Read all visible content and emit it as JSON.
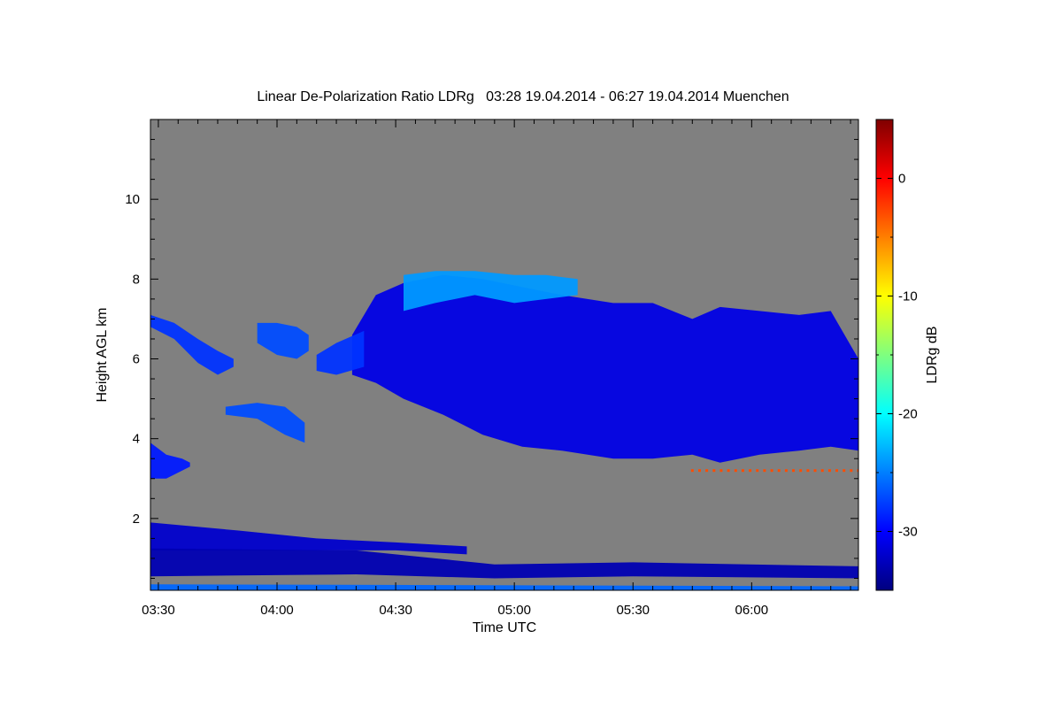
{
  "chart_data": {
    "type": "heatmap",
    "title": "Linear De-Polarization Ratio LDRg   03:28 19.04.2014 - 06:27 19.04.2014 Muenchen",
    "xlabel": "Time UTC",
    "ylabel": "Height AGL km",
    "colorbar_label": "LDRg dB",
    "x_range_minutes_utc": [
      208,
      387
    ],
    "y_range_km": [
      0.2,
      12.0
    ],
    "x_ticks": [
      {
        "minute": 210,
        "label": "03:30"
      },
      {
        "minute": 240,
        "label": "04:00"
      },
      {
        "minute": 270,
        "label": "04:30"
      },
      {
        "minute": 300,
        "label": "05:00"
      },
      {
        "minute": 330,
        "label": "05:30"
      },
      {
        "minute": 360,
        "label": "06:00"
      }
    ],
    "y_ticks": [
      {
        "value": 2,
        "label": "2"
      },
      {
        "value": 4,
        "label": "4"
      },
      {
        "value": 6,
        "label": "6"
      },
      {
        "value": 8,
        "label": "8"
      },
      {
        "value": 10,
        "label": "10"
      }
    ],
    "colorbar_range_db": [
      -35,
      5
    ],
    "colorbar_ticks": [
      {
        "value": 0,
        "label": "0"
      },
      {
        "value": -10,
        "label": "-10"
      },
      {
        "value": -20,
        "label": "-20"
      },
      {
        "value": -30,
        "label": "-30"
      }
    ],
    "no_data_color": "#808080",
    "colormap": [
      "#00007f",
      "#0000ff",
      "#007fff",
      "#00ffff",
      "#7fff7f",
      "#ffff00",
      "#ff7f00",
      "#ff0000",
      "#7f0000"
    ],
    "cloud_regions": [
      {
        "name": "main-cirrus-deck",
        "ldr_db": -31,
        "t_start": 259,
        "t_end": 387,
        "profile": [
          [
            259,
            5.6,
            6.6
          ],
          [
            265,
            5.4,
            7.6
          ],
          [
            272,
            5.0,
            7.9
          ],
          [
            282,
            4.6,
            8.1
          ],
          [
            292,
            4.1,
            8.0
          ],
          [
            302,
            3.8,
            7.8
          ],
          [
            312,
            3.7,
            7.6
          ],
          [
            325,
            3.5,
            7.4
          ],
          [
            335,
            3.5,
            7.4
          ],
          [
            345,
            3.6,
            7.0
          ],
          [
            352,
            3.4,
            7.3
          ],
          [
            362,
            3.6,
            7.2
          ],
          [
            372,
            3.7,
            7.1
          ],
          [
            380,
            3.8,
            7.2
          ],
          [
            387,
            3.7,
            6.0
          ]
        ]
      },
      {
        "name": "cirrus-upper-fringe",
        "ldr_db": -24,
        "t_start": 272,
        "t_end": 316,
        "profile": [
          [
            272,
            7.2,
            8.1
          ],
          [
            280,
            7.4,
            8.2
          ],
          [
            290,
            7.6,
            8.2
          ],
          [
            300,
            7.4,
            8.1
          ],
          [
            308,
            7.5,
            8.1
          ],
          [
            316,
            7.6,
            8.0
          ]
        ]
      },
      {
        "name": "mid-level-cloud-a",
        "ldr_db": -28,
        "t_start": 208,
        "t_end": 229,
        "profile": [
          [
            208,
            6.8,
            7.1
          ],
          [
            214,
            6.5,
            6.9
          ],
          [
            220,
            5.9,
            6.5
          ],
          [
            225,
            5.6,
            6.2
          ],
          [
            229,
            5.8,
            6.0
          ]
        ]
      },
      {
        "name": "mid-level-cloud-b",
        "ldr_db": -27,
        "t_start": 235,
        "t_end": 248,
        "profile": [
          [
            235,
            6.4,
            6.9
          ],
          [
            240,
            6.1,
            6.9
          ],
          [
            245,
            6.0,
            6.8
          ],
          [
            248,
            6.2,
            6.6
          ]
        ]
      },
      {
        "name": "mid-level-cloud-c",
        "ldr_db": -28,
        "t_start": 250,
        "t_end": 262,
        "profile": [
          [
            250,
            5.7,
            6.1
          ],
          [
            255,
            5.6,
            6.4
          ],
          [
            262,
            5.8,
            6.7
          ]
        ]
      },
      {
        "name": "small-cloud-4-5km",
        "ldr_db": -27,
        "t_start": 227,
        "t_end": 247,
        "profile": [
          [
            227,
            4.6,
            4.8
          ],
          [
            235,
            4.5,
            4.9
          ],
          [
            242,
            4.1,
            4.8
          ],
          [
            247,
            3.9,
            4.4
          ]
        ]
      },
      {
        "name": "low-cloud-3km",
        "ldr_db": -29,
        "t_start": 208,
        "t_end": 218,
        "profile": [
          [
            208,
            3.0,
            3.9
          ],
          [
            212,
            3.0,
            3.6
          ],
          [
            216,
            3.2,
            3.5
          ],
          [
            218,
            3.3,
            3.4
          ]
        ]
      },
      {
        "name": "aerosol-layer-1-2km",
        "ldr_db": -32,
        "t_start": 208,
        "t_end": 288,
        "profile": [
          [
            208,
            1.2,
            1.9
          ],
          [
            230,
            1.2,
            1.7
          ],
          [
            250,
            1.2,
            1.5
          ],
          [
            270,
            1.2,
            1.4
          ],
          [
            288,
            1.1,
            1.3
          ]
        ]
      },
      {
        "name": "boundary-layer-band",
        "ldr_db": -33,
        "t_start": 208,
        "t_end": 387,
        "profile": [
          [
            208,
            0.55,
            1.25
          ],
          [
            260,
            0.6,
            1.2
          ],
          [
            295,
            0.5,
            0.85
          ],
          [
            330,
            0.55,
            0.9
          ],
          [
            387,
            0.5,
            0.8
          ]
        ]
      },
      {
        "name": "surface-band",
        "ldr_db": -26,
        "t_start": 208,
        "t_end": 387,
        "profile": [
          [
            208,
            0.2,
            0.35
          ],
          [
            387,
            0.2,
            0.3
          ]
        ]
      }
    ],
    "spot_features": [
      {
        "name": "red-speckle-row",
        "ldr_db": -3,
        "t_start": 345,
        "t_end": 387,
        "height_km": 3.2
      }
    ]
  }
}
